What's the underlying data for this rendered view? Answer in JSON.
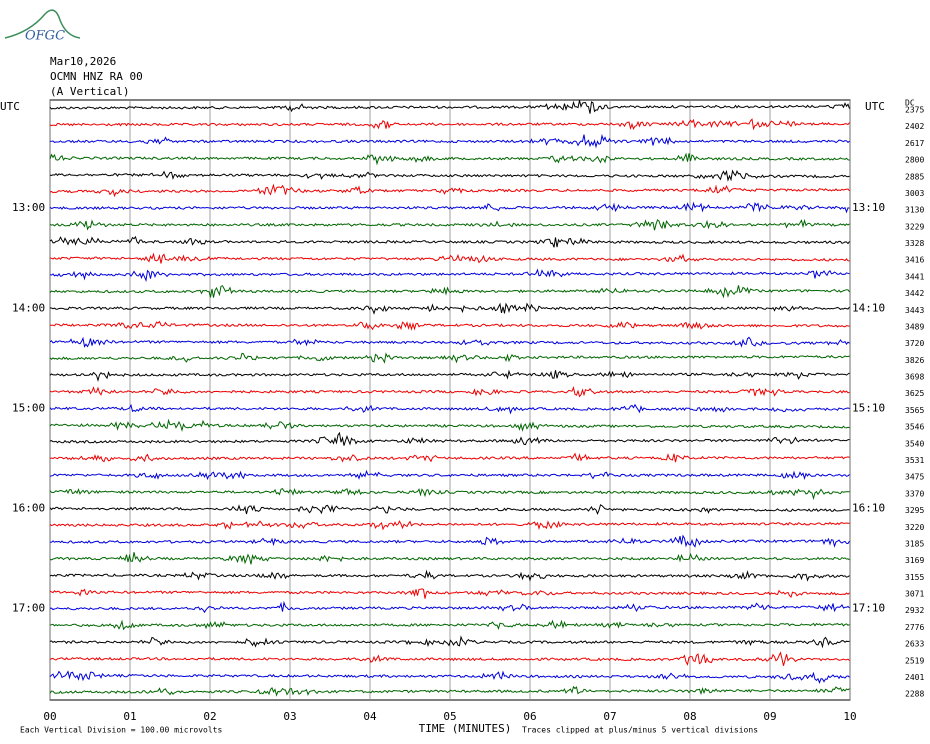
{
  "header": {
    "logo": "OFGC",
    "date": "Mar10,2026",
    "station": "OCMN HNZ RA 00",
    "component": "(A Vertical)"
  },
  "utc_left": "UTC",
  "utc_right": "UTC",
  "dc_header": "DC",
  "left_times": [
    "13:00",
    "14:00",
    "15:00",
    "16:00",
    "17:00"
  ],
  "right_times": [
    "13:10",
    "14:10",
    "15:10",
    "16:10",
    "17:10"
  ],
  "dc_values": [
    2375,
    2402,
    2617,
    2800,
    2885,
    3003,
    3130,
    3229,
    3328,
    3416,
    3441,
    3442,
    3443,
    3489,
    3720,
    3826,
    3698,
    3625,
    3565,
    3546,
    3540,
    3531,
    3475,
    3370,
    3295,
    3220,
    3185,
    3169,
    3155,
    3071,
    2932,
    2776,
    2633,
    2519,
    2401,
    2288
  ],
  "x_ticks": [
    "00",
    "01",
    "02",
    "03",
    "04",
    "05",
    "06",
    "07",
    "08",
    "09",
    "10"
  ],
  "x_label": "TIME (MINUTES)",
  "footer_left": "Each Vertical Division =  100.00 microvolts",
  "footer_right": "Traces clipped at plus/minus 5 vertical divisions"
}
